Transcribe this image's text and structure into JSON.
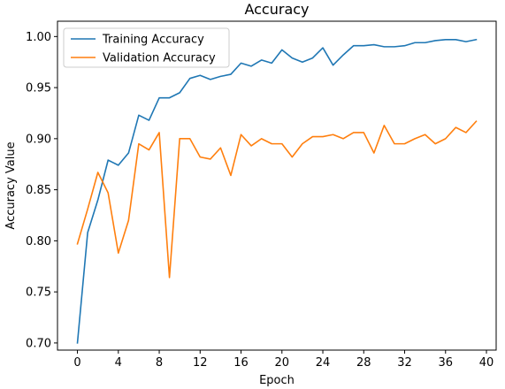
{
  "chart_data": {
    "type": "line",
    "title": "Accuracy",
    "xlabel": "Epoch",
    "ylabel": "Accuracy Value",
    "xlim": [
      -1.95,
      40.95
    ],
    "ylim": [
      0.693,
      1.015
    ],
    "xticks": [
      0,
      4,
      8,
      12,
      16,
      20,
      24,
      28,
      32,
      36,
      40
    ],
    "yticks": [
      0.7,
      0.75,
      0.8,
      0.85,
      0.9,
      0.95,
      1.0
    ],
    "yticks_labels": [
      "0.70",
      "0.75",
      "0.80",
      "0.85",
      "0.90",
      "0.95",
      "1.00"
    ],
    "grid": false,
    "legend_position": "upper-left",
    "x": [
      0,
      1,
      2,
      3,
      4,
      5,
      6,
      7,
      8,
      9,
      10,
      11,
      12,
      13,
      14,
      15,
      16,
      17,
      18,
      19,
      20,
      21,
      22,
      23,
      24,
      25,
      26,
      27,
      28,
      29,
      30,
      31,
      32,
      33,
      34,
      35,
      36,
      37,
      38,
      39
    ],
    "series": [
      {
        "name": "Training Accuracy",
        "color": "#1f77b4",
        "values": [
          0.7,
          0.808,
          0.84,
          0.879,
          0.874,
          0.886,
          0.923,
          0.918,
          0.94,
          0.94,
          0.945,
          0.959,
          0.962,
          0.958,
          0.961,
          0.963,
          0.974,
          0.971,
          0.977,
          0.974,
          0.987,
          0.979,
          0.975,
          0.979,
          0.989,
          0.972,
          0.982,
          0.991,
          0.991,
          0.992,
          0.99,
          0.99,
          0.991,
          0.994,
          0.994,
          0.996,
          0.997,
          0.997,
          0.995,
          0.997
        ]
      },
      {
        "name": "Validation Accuracy",
        "color": "#ff7f0e",
        "values": [
          0.797,
          0.831,
          0.867,
          0.847,
          0.788,
          0.82,
          0.895,
          0.889,
          0.906,
          0.764,
          0.9,
          0.9,
          0.882,
          0.88,
          0.891,
          0.864,
          0.904,
          0.893,
          0.9,
          0.895,
          0.895,
          0.882,
          0.895,
          0.902,
          0.902,
          0.904,
          0.9,
          0.906,
          0.906,
          0.886,
          0.913,
          0.895,
          0.895,
          0.9,
          0.904,
          0.895,
          0.9,
          0.911,
          0.906,
          0.917
        ]
      }
    ]
  }
}
